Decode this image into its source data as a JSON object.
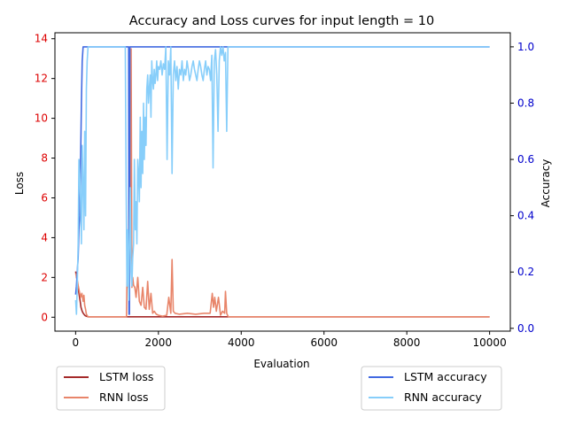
{
  "chart_data": {
    "type": "line",
    "title": "Accuracy and Loss curves for input length = 10",
    "xlabel": "Evaluation",
    "ylabel_left": "Loss",
    "ylabel_right": "Accuracy",
    "xlim": [
      -500,
      10500
    ],
    "ylim_left": [
      -0.7,
      14.3
    ],
    "ylim_right": [
      -0.01,
      1.05
    ],
    "xticks": [
      "0",
      "2000",
      "4000",
      "6000",
      "8000",
      "10000"
    ],
    "yticks_left": [
      "0",
      "2",
      "4",
      "6",
      "8",
      "10",
      "12",
      "14"
    ],
    "yticks_right": [
      "0.0",
      "0.2",
      "0.4",
      "0.6",
      "0.8",
      "1.0"
    ],
    "left_tick_color": "#dd0000",
    "right_tick_color": "#0000cc",
    "grid": false,
    "legend_left_position": "below-left",
    "legend_right_position": "below-right",
    "series": [
      {
        "name": "LSTM loss",
        "axis": "left",
        "color": "#a52a2a",
        "x": [
          0,
          40,
          80,
          110,
          130,
          150,
          170,
          200,
          230,
          260,
          300,
          400,
          600,
          1000,
          1250,
          1290,
          1320,
          1350,
          1400,
          2000,
          3000,
          3500,
          3550,
          4000,
          6000,
          8000,
          10000
        ],
        "y": [
          2.3,
          1.8,
          1.2,
          0.8,
          0.5,
          0.35,
          0.25,
          0.15,
          0.08,
          0.05,
          0.02,
          0.02,
          0.02,
          0.02,
          0.02,
          0.02,
          0.02,
          0.02,
          0.02,
          0.02,
          0.02,
          0.02,
          0.02,
          0.02,
          0.02,
          0.02,
          0.02
        ]
      },
      {
        "name": "RNN loss",
        "axis": "left",
        "color": "#e8856a",
        "x": [
          0,
          30,
          60,
          90,
          120,
          150,
          180,
          200,
          220,
          240,
          260,
          300,
          500,
          1000,
          1230,
          1240,
          1260,
          1280,
          1300,
          1320,
          1340,
          1360,
          1380,
          1400,
          1430,
          1460,
          1500,
          1540,
          1580,
          1620,
          1660,
          1700,
          1740,
          1780,
          1820,
          1860,
          1900,
          1950,
          2000,
          2100,
          2200,
          2250,
          2300,
          2330,
          2360,
          2400,
          2500,
          2700,
          2900,
          3100,
          3250,
          3300,
          3330,
          3360,
          3400,
          3450,
          3500,
          3550,
          3600,
          3620,
          3650,
          3680,
          3700,
          4000,
          6000,
          8000,
          10000
        ],
        "y": [
          2.2,
          2.0,
          1.6,
          1.3,
          1.0,
          1.2,
          0.8,
          1.1,
          0.6,
          0.4,
          0.15,
          0.02,
          0.02,
          0.02,
          0.02,
          2.0,
          1.5,
          4.0,
          6.8,
          3.0,
          13.5,
          1.5,
          2.0,
          1.6,
          1.5,
          1.0,
          2.0,
          0.8,
          0.6,
          1.5,
          0.5,
          0.4,
          1.8,
          0.4,
          1.2,
          0.2,
          0.3,
          0.15,
          0.1,
          0.05,
          0.1,
          1.0,
          0.2,
          2.9,
          0.3,
          0.2,
          0.15,
          0.2,
          0.15,
          0.2,
          0.2,
          1.2,
          0.5,
          1.0,
          0.3,
          1.0,
          0.1,
          0.3,
          0.2,
          1.3,
          0.2,
          0.05,
          0.02,
          0.02,
          0.02,
          0.02,
          0.02
        ]
      },
      {
        "name": "LSTM accuracy",
        "axis": "right",
        "color": "#4169e1",
        "x": [
          0,
          20,
          40,
          60,
          80,
          100,
          120,
          140,
          160,
          180,
          200,
          240,
          300,
          1000,
          1280,
          1290,
          1300,
          1310,
          1320,
          2000,
          3000,
          3500,
          3600,
          4000,
          6000,
          8000,
          10000
        ],
        "y": [
          0.12,
          0.15,
          0.2,
          0.25,
          0.35,
          0.4,
          0.6,
          0.8,
          0.95,
          1.0,
          1.0,
          1.0,
          1.0,
          1.0,
          1.0,
          0.05,
          0.05,
          1.0,
          1.0,
          1.0,
          1.0,
          1.0,
          1.0,
          1.0,
          1.0,
          1.0,
          1.0
        ]
      },
      {
        "name": "RNN accuracy",
        "axis": "right",
        "color": "#87cefa",
        "x": [
          0,
          20,
          40,
          60,
          80,
          100,
          120,
          140,
          160,
          180,
          200,
          220,
          240,
          260,
          280,
          300,
          500,
          1000,
          1200,
          1220,
          1240,
          1260,
          1280,
          1300,
          1320,
          1340,
          1360,
          1380,
          1400,
          1420,
          1440,
          1460,
          1480,
          1500,
          1520,
          1540,
          1560,
          1580,
          1600,
          1620,
          1640,
          1660,
          1680,
          1700,
          1720,
          1740,
          1760,
          1780,
          1800,
          1820,
          1840,
          1860,
          1880,
          1900,
          1920,
          1940,
          1960,
          1980,
          2000,
          2030,
          2060,
          2090,
          2120,
          2150,
          2180,
          2210,
          2240,
          2270,
          2300,
          2330,
          2360,
          2390,
          2420,
          2450,
          2480,
          2510,
          2540,
          2570,
          2600,
          2630,
          2660,
          2690,
          2720,
          2750,
          2780,
          2810,
          2840,
          2870,
          2900,
          2930,
          2960,
          2990,
          3020,
          3050,
          3080,
          3110,
          3140,
          3170,
          3200,
          3230,
          3260,
          3290,
          3320,
          3350,
          3380,
          3410,
          3440,
          3470,
          3500,
          3530,
          3560,
          3590,
          3620,
          3650,
          3680,
          3710,
          4000,
          6000,
          8000,
          10000
        ],
        "y": [
          0.1,
          0.05,
          0.15,
          0.3,
          0.6,
          0.55,
          0.45,
          0.3,
          0.65,
          0.5,
          0.35,
          0.7,
          0.4,
          0.85,
          0.95,
          1.0,
          1.0,
          1.0,
          1.0,
          0.5,
          0.15,
          0.35,
          0.1,
          0.3,
          0.5,
          0.2,
          0.15,
          0.25,
          0.3,
          0.6,
          0.35,
          0.45,
          0.3,
          0.6,
          0.55,
          0.45,
          0.75,
          0.5,
          0.7,
          0.55,
          0.8,
          0.6,
          0.75,
          0.65,
          0.85,
          0.9,
          0.8,
          0.85,
          0.9,
          0.75,
          0.95,
          0.88,
          0.85,
          0.92,
          0.87,
          0.9,
          0.95,
          0.88,
          0.93,
          0.92,
          0.95,
          0.9,
          0.94,
          0.92,
          1.0,
          0.6,
          0.95,
          0.9,
          1.0,
          0.55,
          0.9,
          0.95,
          0.88,
          0.93,
          0.85,
          0.92,
          0.9,
          0.95,
          0.88,
          0.92,
          0.9,
          0.95,
          0.92,
          0.88,
          0.9,
          0.93,
          0.95,
          0.92,
          0.9,
          0.88,
          0.92,
          0.95,
          0.93,
          0.9,
          0.88,
          0.92,
          0.95,
          0.9,
          0.93,
          0.92,
          0.88,
          0.97,
          0.57,
          0.95,
          0.99,
          0.9,
          0.7,
          0.95,
          1.0,
          0.97,
          1.0,
          0.95,
          0.98,
          0.7,
          1.0,
          1.0,
          1.0,
          1.0,
          1.0,
          1.0
        ]
      }
    ]
  }
}
